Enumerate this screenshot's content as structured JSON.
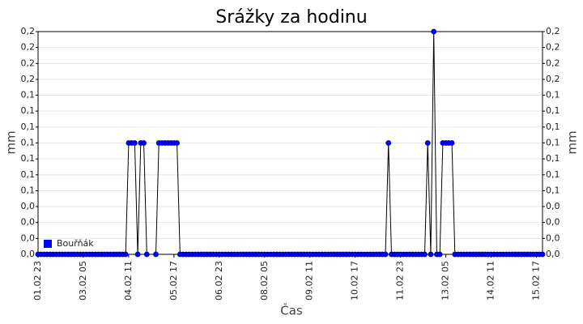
{
  "chart_data": {
    "type": "line",
    "title": "Srážky za hodinu",
    "xlabel": "Čas",
    "ylabel": "mm",
    "categories": [
      "01.02 23",
      null,
      null,
      null,
      null,
      null,
      null,
      null,
      null,
      null,
      null,
      null,
      null,
      null,
      null,
      "03.02 05",
      null,
      null,
      null,
      null,
      null,
      null,
      null,
      null,
      null,
      null,
      null,
      null,
      null,
      null,
      "04.02 11",
      null,
      null,
      null,
      null,
      null,
      null,
      null,
      null,
      null,
      null,
      null,
      null,
      null,
      null,
      "05.02 17",
      null,
      null,
      null,
      null,
      null,
      null,
      null,
      null,
      null,
      null,
      null,
      null,
      null,
      null,
      "06.02 23",
      null,
      null,
      null,
      null,
      null,
      null,
      null,
      null,
      null,
      null,
      null,
      null,
      null,
      null,
      "08.02 05",
      null,
      null,
      null,
      null,
      null,
      null,
      null,
      null,
      null,
      null,
      null,
      null,
      null,
      null,
      "09.02 11",
      null,
      null,
      null,
      null,
      null,
      null,
      null,
      null,
      null,
      null,
      null,
      null,
      null,
      null,
      "10.02 17",
      null,
      null,
      null,
      null,
      null,
      null,
      null,
      null,
      null,
      null,
      null,
      null,
      null,
      null,
      "11.02 23",
      null,
      null,
      null,
      null,
      null,
      null,
      null,
      null,
      null,
      null,
      null,
      null,
      null,
      null,
      "13.02 05",
      null,
      null,
      null,
      null,
      null,
      null,
      null,
      null,
      null,
      null,
      null,
      null,
      null,
      null,
      "14.02 11",
      null,
      null,
      null,
      null,
      null,
      null,
      null,
      null,
      null,
      null,
      null,
      null,
      null,
      null,
      "15.02 17",
      null,
      null
    ],
    "series": [
      {
        "name": "Bouřňák",
        "color": "#0000ff",
        "values": [
          0,
          0,
          0,
          0,
          0,
          0,
          0,
          0,
          0,
          0,
          0,
          0,
          0,
          0,
          0,
          0,
          0,
          0,
          0,
          0,
          0,
          0,
          0,
          0,
          0,
          0,
          0,
          0,
          0,
          0,
          0.1,
          0.1,
          0.1,
          0,
          0.1,
          0.1,
          0,
          null,
          null,
          0,
          0.1,
          0.1,
          0.1,
          0.1,
          0.1,
          0.1,
          0.1,
          0,
          0,
          0,
          0,
          0,
          0,
          0,
          0,
          0,
          0,
          0,
          0,
          0,
          0,
          0,
          0,
          0,
          0,
          0,
          0,
          0,
          0,
          0,
          0,
          0,
          0,
          0,
          0,
          0,
          0,
          0,
          0,
          0,
          0,
          0,
          0,
          0,
          0,
          0,
          0,
          0,
          0,
          0,
          0,
          0,
          0,
          0,
          0,
          0,
          0,
          0,
          0,
          0,
          0,
          0,
          0,
          0,
          0,
          0,
          0,
          0,
          0,
          0,
          0,
          0,
          0,
          0,
          0,
          0,
          0.1,
          0,
          0,
          0,
          0,
          0,
          0,
          0,
          0,
          0,
          0,
          0,
          0,
          0.1,
          0,
          0.2,
          0,
          0,
          0.1,
          0.1,
          0.1,
          0.1,
          0,
          0,
          0,
          0,
          0,
          0,
          0,
          0,
          0,
          0,
          0,
          0,
          0,
          0,
          0,
          0,
          0,
          0,
          0,
          0,
          0,
          0,
          0,
          0,
          0,
          0,
          0,
          0,
          0,
          0
        ]
      }
    ],
    "ylim": [
      0,
      0.2
    ],
    "yticks": [
      {
        "value": 0,
        "label": "0,0"
      },
      {
        "value": 0.0143,
        "label": "0,0"
      },
      {
        "value": 0.0286,
        "label": "0,0"
      },
      {
        "value": 0.0429,
        "label": "0,0"
      },
      {
        "value": 0.0571,
        "label": "0,1"
      },
      {
        "value": 0.0714,
        "label": "0,1"
      },
      {
        "value": 0.0857,
        "label": "0,1"
      },
      {
        "value": 0.1,
        "label": "0,1"
      },
      {
        "value": 0.1143,
        "label": "0,1"
      },
      {
        "value": 0.1286,
        "label": "0,1"
      },
      {
        "value": 0.1429,
        "label": "0,1"
      },
      {
        "value": 0.1571,
        "label": "0,2"
      },
      {
        "value": 0.1714,
        "label": "0,2"
      },
      {
        "value": 0.1857,
        "label": "0,2"
      },
      {
        "value": 0.2,
        "label": "0,2"
      }
    ],
    "grid": true,
    "legend": "lower left"
  }
}
